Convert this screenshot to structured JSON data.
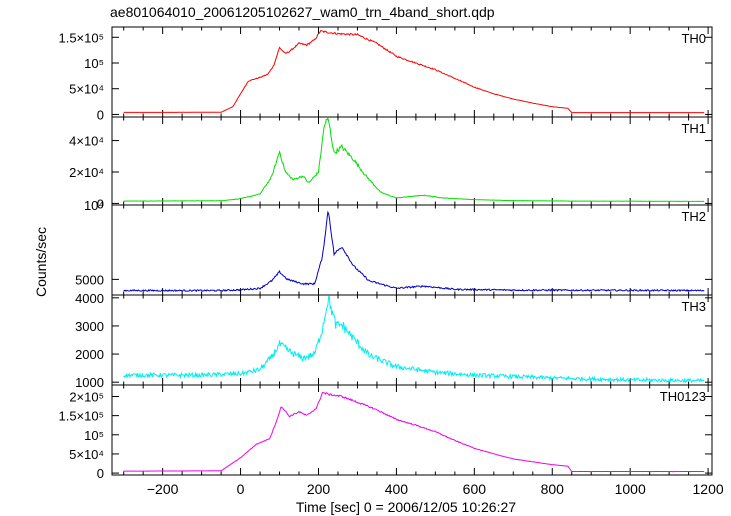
{
  "chart_data": {
    "type": "line",
    "title": "ae801064010_20061205102627_wam0_trn_4band_short.qdp",
    "xlabel": "Time [sec] 0 = 2006/12/05 10:26:27",
    "ylabel": "Counts/sec",
    "xlim": [
      -330,
      1210
    ],
    "x_ticks": [
      -200,
      0,
      200,
      400,
      600,
      800,
      1000,
      1200
    ],
    "x_tick_labels": [
      "−200",
      "0",
      "200",
      "400",
      "600",
      "800",
      "1000",
      "1200"
    ],
    "grid": false,
    "panels": [
      {
        "name": "TH0",
        "color": "#ff0000",
        "ylim": [
          -5000,
          170000
        ],
        "y_ticks": [
          0,
          50000,
          100000,
          150000
        ],
        "y_tick_labels": [
          "0",
          "5×10⁴",
          "10⁵",
          "1.5×10⁵"
        ],
        "noise": 0.012,
        "points": [
          [
            -300,
            4000
          ],
          [
            -50,
            4200
          ],
          [
            -20,
            15000
          ],
          [
            0,
            40000
          ],
          [
            20,
            65000
          ],
          [
            50,
            72000
          ],
          [
            70,
            78000
          ],
          [
            85,
            95000
          ],
          [
            100,
            130000
          ],
          [
            115,
            118000
          ],
          [
            130,
            125000
          ],
          [
            150,
            138000
          ],
          [
            170,
            135000
          ],
          [
            190,
            145000
          ],
          [
            205,
            162000
          ],
          [
            220,
            160000
          ],
          [
            250,
            157000
          ],
          [
            300,
            155000
          ],
          [
            350,
            138000
          ],
          [
            400,
            113000
          ],
          [
            450,
            100000
          ],
          [
            500,
            87000
          ],
          [
            550,
            70000
          ],
          [
            600,
            53000
          ],
          [
            650,
            40000
          ],
          [
            700,
            30000
          ],
          [
            750,
            22000
          ],
          [
            800,
            15000
          ],
          [
            840,
            12000
          ],
          [
            850,
            3500
          ],
          [
            1190,
            3500
          ]
        ]
      },
      {
        "name": "TH1",
        "color": "#00dd00",
        "ylim": [
          -1000,
          55000
        ],
        "y_ticks": [
          0,
          20000,
          40000
        ],
        "y_tick_labels": [
          "0",
          "2×10⁴",
          "4×10⁴"
        ],
        "noise": 0.04,
        "points": [
          [
            -300,
            1500
          ],
          [
            -50,
            1700
          ],
          [
            0,
            3000
          ],
          [
            50,
            6000
          ],
          [
            80,
            17000
          ],
          [
            100,
            33000
          ],
          [
            115,
            20000
          ],
          [
            135,
            15000
          ],
          [
            160,
            17500
          ],
          [
            175,
            13000
          ],
          [
            200,
            20000
          ],
          [
            215,
            50000
          ],
          [
            225,
            54000
          ],
          [
            240,
            32000
          ],
          [
            260,
            36000
          ],
          [
            290,
            28000
          ],
          [
            320,
            18000
          ],
          [
            360,
            7000
          ],
          [
            400,
            3500
          ],
          [
            440,
            4500
          ],
          [
            470,
            5200
          ],
          [
            520,
            3500
          ],
          [
            600,
            2400
          ],
          [
            700,
            1800
          ],
          [
            850,
            1500
          ],
          [
            1190,
            1300
          ]
        ]
      },
      {
        "name": "TH2",
        "color": "#0000cc",
        "ylim": [
          3950,
          10000
        ],
        "y_ticks": [
          5000,
          10000
        ],
        "y_tick_labels": [
          "5000",
          "10⁴"
        ],
        "noise": 0.012,
        "points": [
          [
            -300,
            4250
          ],
          [
            -50,
            4250
          ],
          [
            0,
            4300
          ],
          [
            50,
            4400
          ],
          [
            80,
            4900
          ],
          [
            100,
            5500
          ],
          [
            120,
            5000
          ],
          [
            160,
            4700
          ],
          [
            190,
            4700
          ],
          [
            210,
            6500
          ],
          [
            225,
            9700
          ],
          [
            240,
            6700
          ],
          [
            260,
            7200
          ],
          [
            290,
            5900
          ],
          [
            330,
            4900
          ],
          [
            400,
            4400
          ],
          [
            470,
            4550
          ],
          [
            550,
            4330
          ],
          [
            700,
            4280
          ],
          [
            1190,
            4250
          ]
        ]
      },
      {
        "name": "TH3",
        "color": "#00eeee",
        "ylim": [
          900,
          4100
        ],
        "y_ticks": [
          1000,
          2000,
          3000,
          4000
        ],
        "y_tick_labels": [
          "1000",
          "2000",
          "3000",
          "4000"
        ],
        "noise": 0.06,
        "points": [
          [
            -300,
            1250
          ],
          [
            -100,
            1250
          ],
          [
            0,
            1300
          ],
          [
            50,
            1450
          ],
          [
            80,
            1900
          ],
          [
            100,
            2350
          ],
          [
            130,
            2050
          ],
          [
            160,
            1850
          ],
          [
            190,
            2000
          ],
          [
            210,
            2900
          ],
          [
            225,
            4000
          ],
          [
            245,
            3000
          ],
          [
            260,
            3050
          ],
          [
            290,
            2550
          ],
          [
            330,
            1950
          ],
          [
            400,
            1550
          ],
          [
            500,
            1350
          ],
          [
            600,
            1250
          ],
          [
            800,
            1150
          ],
          [
            1000,
            1080
          ],
          [
            1190,
            1050
          ]
        ]
      },
      {
        "name": "TH0123",
        "color": "#ee00ee",
        "ylim": [
          -5000,
          230000
        ],
        "y_ticks": [
          0,
          50000,
          100000,
          150000,
          200000
        ],
        "y_tick_labels": [
          "0",
          "5×10⁴",
          "10⁵",
          "1.5×10⁵",
          "2×10⁵"
        ],
        "noise": 0.012,
        "points": [
          [
            -300,
            5000
          ],
          [
            -50,
            6000
          ],
          [
            0,
            40000
          ],
          [
            40,
            75000
          ],
          [
            75,
            90000
          ],
          [
            90,
            130000
          ],
          [
            105,
            175000
          ],
          [
            125,
            148000
          ],
          [
            150,
            160000
          ],
          [
            170,
            150000
          ],
          [
            195,
            170000
          ],
          [
            210,
            210000
          ],
          [
            230,
            205000
          ],
          [
            260,
            200000
          ],
          [
            300,
            185000
          ],
          [
            350,
            165000
          ],
          [
            400,
            140000
          ],
          [
            450,
            125000
          ],
          [
            500,
            108000
          ],
          [
            550,
            85000
          ],
          [
            600,
            65000
          ],
          [
            650,
            50000
          ],
          [
            700,
            37000
          ],
          [
            800,
            22000
          ],
          [
            840,
            18000
          ],
          [
            850,
            4000
          ],
          [
            1190,
            4000
          ]
        ]
      }
    ]
  }
}
